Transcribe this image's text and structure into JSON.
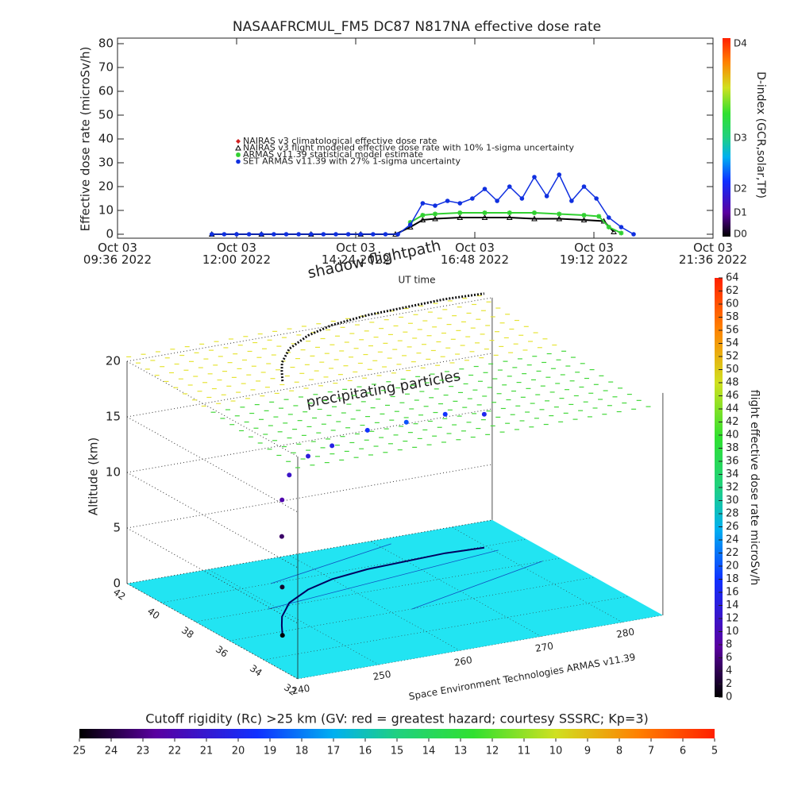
{
  "chart_data": [
    {
      "type": "line",
      "title": "NASAAFRCMUL_FM5 DC87 N817NA effective dose rate",
      "ylabel": "Effective dose rate (microSv/h)",
      "xlabel": "UT time",
      "xlim": [
        9.6,
        21.6
      ],
      "xticks": [
        {
          "value": 9.6,
          "label": "Oct 03\n09:36 2022"
        },
        {
          "value": 12,
          "label": "Oct 03\n12:00 2022"
        },
        {
          "value": 14.4,
          "label": "Oct 03\n14:24 2022"
        },
        {
          "value": 16.8,
          "label": "Oct 03\n16:48 2022"
        },
        {
          "value": 19.2,
          "label": "Oct 03\n19:12 2022"
        },
        {
          "value": 21.6,
          "label": "Oct 03\n21:36 2022"
        }
      ],
      "ylim": [
        0,
        80
      ],
      "yticks": [
        0,
        10,
        20,
        30,
        40,
        50,
        60,
        70,
        80
      ],
      "series": [
        {
          "name": "NAIRAS v3 climatological effective dose rate",
          "color": "#d02020",
          "marker": "diamond",
          "x": [],
          "values": []
        },
        {
          "name": "NAIRAS v3 flight modeled effective dose rate with 10% 1-sigma uncertainty",
          "color": "#000000",
          "marker": "triangle",
          "x": [
            11.5,
            12.5,
            13.5,
            14.5,
            15.2,
            15.5,
            15.75,
            16.0,
            16.5,
            17.0,
            17.5,
            18.0,
            18.5,
            19.0,
            19.4,
            19.6
          ],
          "values": [
            0,
            0,
            0,
            0,
            0,
            3,
            6,
            6.5,
            7,
            7,
            7,
            6.5,
            6.5,
            6,
            5.5,
            1
          ]
        },
        {
          "name": "ARMAS v11.39 statistical model estimate",
          "color": "#30d030",
          "marker": "asterisk",
          "x": [
            15.5,
            15.75,
            16.0,
            16.5,
            17.0,
            17.5,
            18.0,
            18.5,
            19.0,
            19.3,
            19.5,
            19.75
          ],
          "values": [
            5,
            8,
            8.5,
            9,
            9,
            9,
            9,
            8.5,
            8,
            7.5,
            3,
            0.5
          ]
        },
        {
          "name": "SET ARMAS v11.39 with 27% 1-sigma uncertainty",
          "color": "#1030e0",
          "marker": "circle",
          "x": [
            11.5,
            11.75,
            12.0,
            12.25,
            12.5,
            12.75,
            13.0,
            13.25,
            13.5,
            13.75,
            14.0,
            14.25,
            14.5,
            14.75,
            15.0,
            15.25,
            15.5,
            15.75,
            16.0,
            16.25,
            16.5,
            16.75,
            17.0,
            17.25,
            17.5,
            17.75,
            18.0,
            18.25,
            18.5,
            18.75,
            19.0,
            19.25,
            19.5,
            19.75,
            20.0
          ],
          "values": [
            0,
            0,
            0,
            0,
            0,
            0,
            0,
            0,
            0,
            0,
            0,
            0,
            0,
            0,
            0,
            0,
            4,
            13,
            12,
            14,
            13,
            15,
            19,
            14,
            20,
            15,
            24,
            16,
            25,
            14,
            20,
            15,
            7,
            3,
            0
          ]
        }
      ],
      "colorbar": {
        "label": "D-index (GCR,solar,TP)",
        "ticks": [
          "D0",
          "D1",
          "D2",
          "D3",
          "D4"
        ]
      }
    },
    {
      "type": "scatter3d",
      "zlabel": "Altitude (km)",
      "zlim": [
        0,
        20
      ],
      "zticks": [
        0,
        5,
        10,
        15,
        20
      ],
      "ylim": [
        32,
        42
      ],
      "yticks": [
        32,
        34,
        36,
        38,
        40,
        42
      ],
      "xlim": [
        240,
        285
      ],
      "xticks": [
        240,
        250,
        260,
        270,
        280
      ],
      "annotations": [
        "shadow flightpath",
        "precipitating particles",
        "Space Environment Technologies ARMAS v11.39"
      ],
      "flight": {
        "lon": [
          245.9,
          246.5,
          247.5,
          249,
          252,
          256,
          260,
          265,
          270,
          275,
          279.6
        ],
        "lat": [
          35.7,
          36.0,
          36.5,
          37.2,
          38.2,
          39.0,
          39.5,
          39.8,
          39.9,
          40.0,
          39.9
        ],
        "alt": [
          0,
          4,
          8,
          10.5,
          11.5,
          12,
          12,
          12.5,
          12.5,
          12.5,
          12
        ],
        "dose": [
          0,
          2,
          5,
          9,
          12,
          14,
          15,
          18,
          20,
          18,
          16
        ]
      },
      "colorbar": {
        "label": "flight effective dose rate microSv/h",
        "range": [
          0,
          64
        ],
        "ticks": [
          0,
          2,
          4,
          6,
          8,
          10,
          12,
          14,
          16,
          18,
          20,
          22,
          24,
          26,
          28,
          30,
          32,
          34,
          36,
          38,
          40,
          42,
          44,
          46,
          48,
          50,
          52,
          54,
          56,
          58,
          60,
          62,
          64
        ]
      },
      "colorbar2": {
        "label": "Cutoff rigidity (Rc) >25 km (GV: red = greatest hazard; courtesy SSSRC; Kp=3)",
        "range": [
          25,
          5
        ],
        "ticks": [
          25,
          24,
          23,
          22,
          21,
          20,
          19,
          18,
          17,
          16,
          15,
          14,
          13,
          12,
          11,
          10,
          9,
          8,
          7,
          6,
          5
        ]
      }
    }
  ]
}
